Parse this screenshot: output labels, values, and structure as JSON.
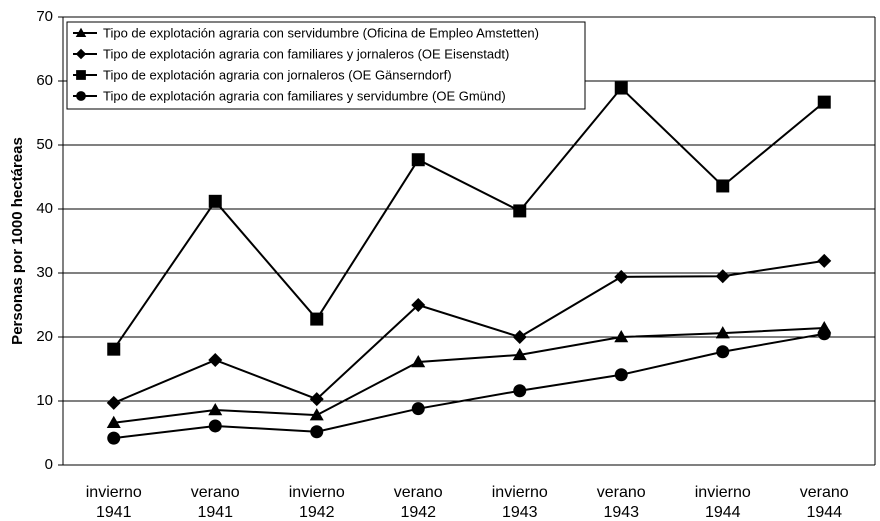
{
  "chart_data": {
    "type": "line",
    "y_label": "Personas por 1000 hectáreas",
    "categories": [
      [
        "invierno",
        "1941"
      ],
      [
        "verano",
        "1941"
      ],
      [
        "invierno",
        "1942"
      ],
      [
        "verano",
        "1942"
      ],
      [
        "invierno",
        "1943"
      ],
      [
        "verano",
        "1943"
      ],
      [
        "invierno",
        "1944"
      ],
      [
        "verano",
        "1944"
      ]
    ],
    "series": [
      {
        "name": "Tipo de explotación agraria con servidumbre (Oficina de Empleo Amstetten)",
        "color": "#000000",
        "marker": "triangle",
        "values": [
          6.6,
          8.6,
          7.8,
          16.1,
          17.2,
          20.0,
          20.6,
          21.4
        ]
      },
      {
        "name": "Tipo de explotación agraria con familiares y jornaleros (OE Eisenstadt)",
        "color": "#000000",
        "marker": "diamond",
        "values": [
          9.7,
          16.4,
          10.3,
          25.0,
          20.0,
          29.4,
          29.5,
          31.9
        ]
      },
      {
        "name": "Tipo de explotación agraria con jornaleros (OE Gänserndorf)",
        "color": "#000000",
        "marker": "square",
        "values": [
          18.1,
          41.2,
          22.8,
          47.7,
          39.7,
          58.9,
          43.6,
          56.7
        ]
      },
      {
        "name": "Tipo de explotación agraria con familiares y servidumbre (OE Gmünd)",
        "color": "#000000",
        "marker": "circle",
        "values": [
          4.2,
          6.1,
          5.2,
          8.8,
          11.6,
          14.1,
          17.7,
          20.5
        ]
      }
    ],
    "ylim": [
      0,
      70
    ],
    "yticks": [
      0,
      10,
      20,
      30,
      40,
      50,
      60,
      70
    ],
    "grid": true,
    "legend": "top-left"
  }
}
